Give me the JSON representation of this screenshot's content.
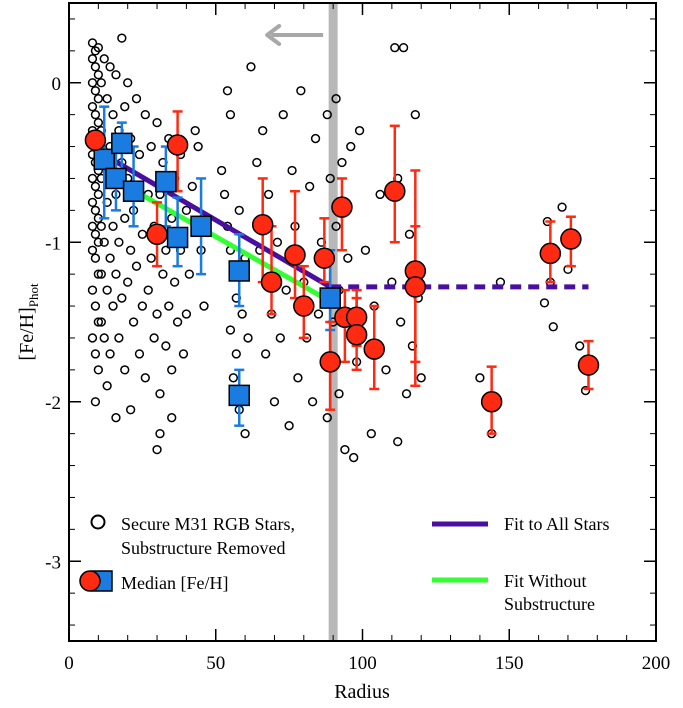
{
  "chart_data": {
    "type": "scatter",
    "xlabel": "Radius",
    "ylabel": "[Fe/H]",
    "ylabel_sub": "Phot",
    "xlim": [
      0,
      200
    ],
    "ylim": [
      -3.5,
      0.5
    ],
    "x_ticks": [
      0,
      50,
      100,
      150,
      200
    ],
    "x_tick_labels": [
      "0",
      "50",
      "100",
      "150",
      "200"
    ],
    "y_ticks": [
      0,
      -1,
      -2,
      -3
    ],
    "y_tick_labels": [
      "0",
      "-1",
      "-2",
      "-3"
    ],
    "vertical_line_x": 90,
    "legend": {
      "stars_label_1": "Secure M31 RGB Stars,",
      "stars_label_2": "Substructure Removed",
      "median_label": "Median [Fe/H]",
      "fit_all_label": "Fit to All Stars",
      "fit_nosub_label_1": "Fit Without",
      "fit_nosub_label_2": "Substructure"
    },
    "colors": {
      "stars": "#000000",
      "red_median": "#ff2a12",
      "red_error": "#ff2a12",
      "blue_median": "#1a7be0",
      "blue_error": "#1a7be0",
      "fit_all": "#4b0fa0",
      "fit_nosub": "#33ff33",
      "vline": "#b8b8b8",
      "arrow": "#a8a8a8"
    },
    "fit_all": {
      "x": [
        9,
        89
      ],
      "y": [
        -0.42,
        -1.28
      ],
      "flat_x": [
        89,
        177
      ],
      "flat_y": -1.28
    },
    "fit_nosub": {
      "x": [
        13,
        89
      ],
      "y": [
        -0.58,
        -1.37
      ]
    },
    "red_medians": [
      {
        "x": 9,
        "y": -0.36,
        "lo": -0.36,
        "hi": -0.36
      },
      {
        "x": 30,
        "y": -0.95,
        "lo": -1.15,
        "hi": -0.75
      },
      {
        "x": 37,
        "y": -0.39,
        "lo": -0.68,
        "hi": -0.18
      },
      {
        "x": 66,
        "y": -0.89,
        "lo": -1.25,
        "hi": -0.6
      },
      {
        "x": 69,
        "y": -1.25,
        "lo": -1.45,
        "hi": -0.9
      },
      {
        "x": 77,
        "y": -1.08,
        "lo": -1.35,
        "hi": -0.68
      },
      {
        "x": 80,
        "y": -1.4,
        "lo": -1.6,
        "hi": -1.15
      },
      {
        "x": 87,
        "y": -1.1,
        "lo": -1.25,
        "hi": -0.85
      },
      {
        "x": 89,
        "y": -1.75,
        "lo": -2.05,
        "hi": -1.5
      },
      {
        "x": 93,
        "y": -0.78,
        "lo": -1.05,
        "hi": -0.6
      },
      {
        "x": 94,
        "y": -1.47,
        "lo": -1.75,
        "hi": -1.3
      },
      {
        "x": 98,
        "y": -1.47,
        "lo": -1.65,
        "hi": -1.3
      },
      {
        "x": 98,
        "y": -1.58,
        "lo": -1.8,
        "hi": -1.35
      },
      {
        "x": 104,
        "y": -1.67,
        "lo": -1.92,
        "hi": -1.4
      },
      {
        "x": 111,
        "y": -0.68,
        "lo": -1.0,
        "hi": -0.27
      },
      {
        "x": 118,
        "y": -1.18,
        "lo": -1.75,
        "hi": -0.55
      },
      {
        "x": 118,
        "y": -1.28,
        "lo": -1.9,
        "hi": -0.9
      },
      {
        "x": 144,
        "y": -2.0,
        "lo": -2.2,
        "hi": -1.78
      },
      {
        "x": 164,
        "y": -1.07,
        "lo": -1.25,
        "hi": -0.87
      },
      {
        "x": 171,
        "y": -0.98,
        "lo": -1.15,
        "hi": -0.84
      },
      {
        "x": 177,
        "y": -1.77,
        "lo": -1.92,
        "hi": -1.62
      }
    ],
    "blue_medians": [
      {
        "x": 12,
        "y": -0.48,
        "lo": -0.85,
        "hi": -0.15
      },
      {
        "x": 16,
        "y": -0.6,
        "lo": -0.8,
        "hi": -0.4
      },
      {
        "x": 18,
        "y": -0.38,
        "lo": -0.6,
        "hi": -0.25
      },
      {
        "x": 22,
        "y": -0.68,
        "lo": -0.9,
        "hi": -0.4
      },
      {
        "x": 33,
        "y": -0.62,
        "lo": -0.9,
        "hi": -0.4
      },
      {
        "x": 37,
        "y": -0.97,
        "lo": -1.15,
        "hi": -0.72
      },
      {
        "x": 45,
        "y": -0.9,
        "lo": -1.2,
        "hi": -0.6
      },
      {
        "x": 58,
        "y": -1.18,
        "lo": -1.4,
        "hi": -0.95
      },
      {
        "x": 58,
        "y": -1.96,
        "lo": -2.15,
        "hi": -1.8
      },
      {
        "x": 89,
        "y": -1.35,
        "lo": -1.55,
        "hi": -1.05
      }
    ],
    "stars": [
      [
        8,
        0.25
      ],
      [
        9,
        0.2
      ],
      [
        10,
        0.22
      ],
      [
        8,
        0.15
      ],
      [
        9,
        0.1
      ],
      [
        10,
        0.05
      ],
      [
        8,
        0.0
      ],
      [
        9,
        -0.05
      ],
      [
        10,
        -0.1
      ],
      [
        8,
        -0.15
      ],
      [
        9,
        -0.2
      ],
      [
        10,
        -0.25
      ],
      [
        8,
        -0.3
      ],
      [
        9,
        -0.35
      ],
      [
        10,
        -0.4
      ],
      [
        8,
        -0.45
      ],
      [
        9,
        -0.5
      ],
      [
        10,
        -0.55
      ],
      [
        8,
        -0.6
      ],
      [
        9,
        -0.65
      ],
      [
        10,
        -0.7
      ],
      [
        8,
        -0.75
      ],
      [
        9,
        -0.8
      ],
      [
        10,
        -0.85
      ],
      [
        8,
        -0.9
      ],
      [
        9,
        -0.95
      ],
      [
        10,
        -1.0
      ],
      [
        8,
        -1.05
      ],
      [
        9,
        -1.1
      ],
      [
        10,
        -1.2
      ],
      [
        8,
        -1.3
      ],
      [
        9,
        -1.4
      ],
      [
        10,
        -1.5
      ],
      [
        8,
        -1.6
      ],
      [
        9,
        -1.7
      ],
      [
        10,
        -1.8
      ],
      [
        9,
        -2.0
      ],
      [
        11,
        0.0
      ],
      [
        11,
        -0.3
      ],
      [
        11,
        -0.6
      ],
      [
        11,
        -0.9
      ],
      [
        11,
        -1.2
      ],
      [
        11,
        -1.5
      ],
      [
        12,
        0.15
      ],
      [
        13,
        -0.1
      ],
      [
        12,
        -0.45
      ],
      [
        13,
        -0.75
      ],
      [
        12,
        -1.0
      ],
      [
        13,
        -1.3
      ],
      [
        12,
        -1.6
      ],
      [
        13,
        -1.9
      ],
      [
        14,
        0.1
      ],
      [
        14,
        -0.4
      ],
      [
        14,
        -1.1
      ],
      [
        14,
        -1.7
      ],
      [
        15,
        -0.2
      ],
      [
        15,
        -0.9
      ],
      [
        15,
        -1.4
      ],
      [
        16,
        0.05
      ],
      [
        16,
        -0.7
      ],
      [
        16,
        -1.2
      ],
      [
        16,
        -2.1
      ],
      [
        17,
        -0.3
      ],
      [
        17,
        -1.0
      ],
      [
        17,
        -1.6
      ],
      [
        18,
        0.28
      ],
      [
        18,
        -0.5
      ],
      [
        18,
        -1.35
      ],
      [
        19,
        -0.15
      ],
      [
        19,
        -0.85
      ],
      [
        19,
        -1.8
      ],
      [
        20,
        0.0
      ],
      [
        20,
        -0.6
      ],
      [
        20,
        -1.25
      ],
      [
        21,
        -0.35
      ],
      [
        21,
        -1.05
      ],
      [
        21,
        -2.05
      ],
      [
        22,
        -0.8
      ],
      [
        22,
        -1.5
      ],
      [
        23,
        -0.1
      ],
      [
        23,
        -1.15
      ],
      [
        24,
        -0.45
      ],
      [
        24,
        -1.7
      ],
      [
        25,
        -0.95
      ],
      [
        25,
        -1.4
      ],
      [
        26,
        -0.2
      ],
      [
        26,
        -1.85
      ],
      [
        27,
        -0.7
      ],
      [
        27,
        -1.3
      ],
      [
        28,
        -0.4
      ],
      [
        28,
        -1.1
      ],
      [
        29,
        -0.9
      ],
      [
        29,
        -1.6
      ],
      [
        30,
        -0.25
      ],
      [
        30,
        -1.45
      ],
      [
        31,
        -0.7
      ],
      [
        31,
        -1.95
      ],
      [
        32,
        -0.5
      ],
      [
        32,
        -1.2
      ],
      [
        33,
        -1.05
      ],
      [
        33,
        -1.65
      ],
      [
        34,
        -0.35
      ],
      [
        34,
        -1.4
      ],
      [
        35,
        -0.85
      ],
      [
        35,
        -1.8
      ],
      [
        36,
        -0.6
      ],
      [
        36,
        -1.25
      ],
      [
        37,
        -1.5
      ],
      [
        38,
        -0.45
      ],
      [
        38,
        -1.05
      ],
      [
        39,
        -1.7
      ],
      [
        40,
        -0.8
      ],
      [
        41,
        -1.2
      ],
      [
        42,
        -0.65
      ],
      [
        44,
        -0.4
      ],
      [
        45,
        -1.05
      ],
      [
        46,
        -1.4
      ],
      [
        30,
        -2.3
      ],
      [
        31,
        -2.2
      ],
      [
        35,
        -2.1
      ],
      [
        40,
        -1.45
      ],
      [
        43,
        -0.3
      ],
      [
        52,
        -0.55
      ],
      [
        53,
        -0.7
      ],
      [
        54,
        -0.9
      ],
      [
        55,
        -1.05
      ],
      [
        56,
        -1.2
      ],
      [
        55,
        -0.2
      ],
      [
        57,
        -1.35
      ],
      [
        58,
        -0.8
      ],
      [
        55,
        -1.55
      ],
      [
        57,
        -1.7
      ],
      [
        59,
        -1.45
      ],
      [
        56,
        -1.85
      ],
      [
        58,
        -2.05
      ],
      [
        60,
        -1.1
      ],
      [
        61,
        -1.6
      ],
      [
        54,
        -0.05
      ],
      [
        60,
        -2.2
      ],
      [
        62,
        0.1
      ],
      [
        64,
        -0.5
      ],
      [
        65,
        -1.05
      ],
      [
        66,
        -0.3
      ],
      [
        67,
        -1.7
      ],
      [
        68,
        -0.7
      ],
      [
        69,
        -1.45
      ],
      [
        70,
        -2.0
      ],
      [
        71,
        -1.0
      ],
      [
        72,
        -1.6
      ],
      [
        73,
        -0.2
      ],
      [
        74,
        -1.3
      ],
      [
        75,
        -2.15
      ],
      [
        76,
        -0.55
      ],
      [
        77,
        -0.9
      ],
      [
        78,
        -1.85
      ],
      [
        79,
        -0.05
      ],
      [
        80,
        -1.25
      ],
      [
        81,
        -1.6
      ],
      [
        82,
        -0.65
      ],
      [
        83,
        -2.0
      ],
      [
        84,
        -0.35
      ],
      [
        85,
        -1.45
      ],
      [
        86,
        -1.0
      ],
      [
        87,
        -1.75
      ],
      [
        88,
        -0.2
      ],
      [
        88,
        -2.1
      ],
      [
        89,
        -0.6
      ],
      [
        90,
        -1.5
      ],
      [
        91,
        -0.1
      ],
      [
        91,
        -0.9
      ],
      [
        92,
        -1.3
      ],
      [
        92,
        -1.95
      ],
      [
        93,
        -0.5
      ],
      [
        94,
        -2.3
      ],
      [
        95,
        -1.1
      ],
      [
        96,
        -0.4
      ],
      [
        97,
        -2.35
      ],
      [
        98,
        -1.75
      ],
      [
        99,
        -0.3
      ],
      [
        101,
        -1.05
      ],
      [
        103,
        -2.2
      ],
      [
        104,
        -1.4
      ],
      [
        106,
        -0.7
      ],
      [
        108,
        -1.8
      ],
      [
        110,
        -1.25
      ],
      [
        111,
        0.22
      ],
      [
        112,
        -0.6
      ],
      [
        113,
        -1.5
      ],
      [
        114,
        0.22
      ],
      [
        115,
        -1.95
      ],
      [
        116,
        -0.95
      ],
      [
        117,
        -1.65
      ],
      [
        118,
        -0.2
      ],
      [
        119,
        -1.35
      ],
      [
        120,
        -1.85
      ],
      [
        112,
        -2.25
      ],
      [
        140,
        -1.85
      ],
      [
        144,
        -2.2
      ],
      [
        147,
        -1.25
      ],
      [
        162,
        -1.38
      ],
      [
        163,
        -0.87
      ],
      [
        164,
        -1.25
      ],
      [
        165,
        -1.53
      ],
      [
        168,
        -0.78
      ],
      [
        170,
        -1.17
      ],
      [
        174,
        -1.65
      ],
      [
        176,
        -1.93
      ]
    ]
  }
}
